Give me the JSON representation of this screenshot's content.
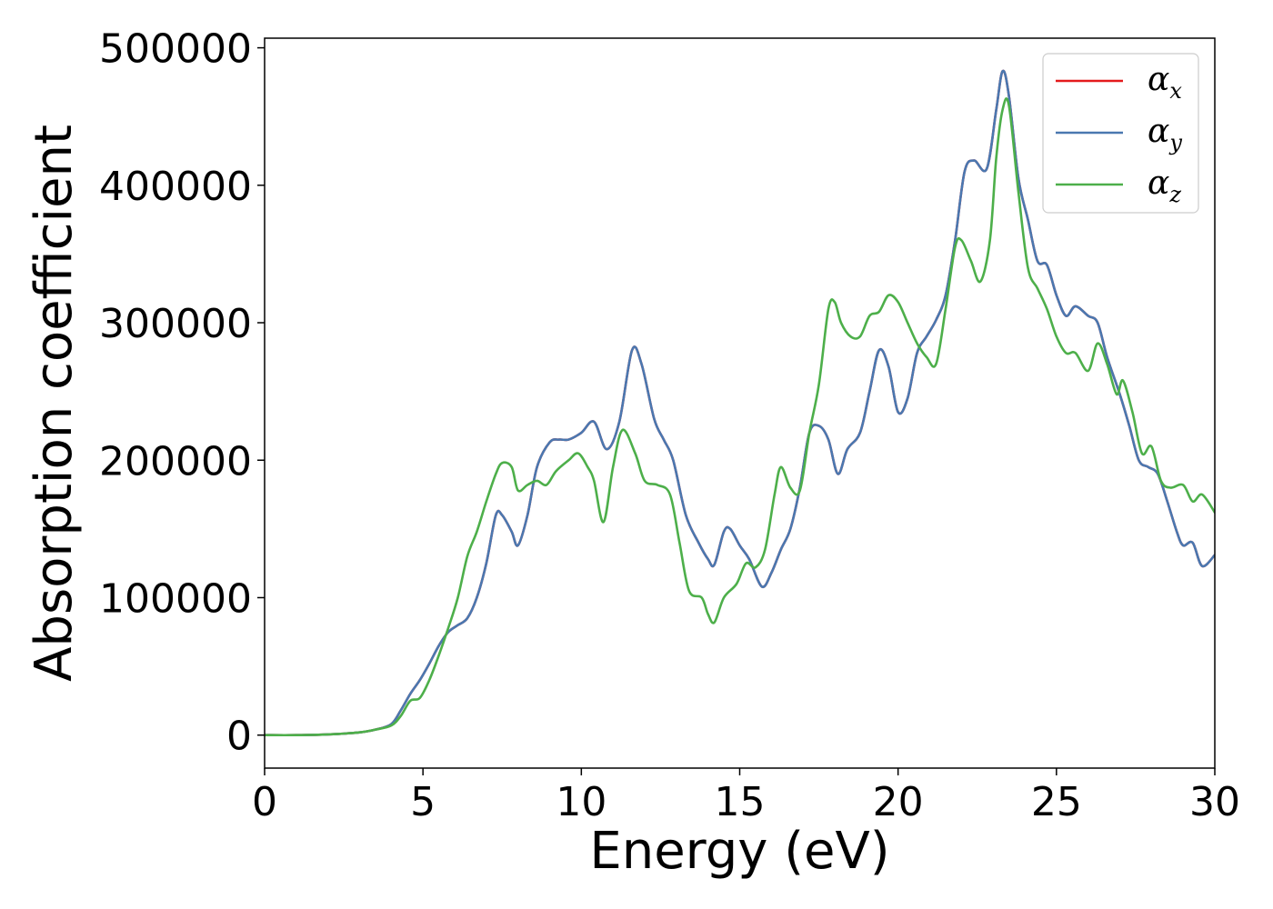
{
  "chart_data": {
    "type": "line",
    "title": "",
    "xlabel": "Energy (eV)",
    "ylabel": "Absorption coefficient",
    "xlim": [
      0,
      30
    ],
    "ylim": [
      -24000,
      507000
    ],
    "x_ticks": [
      0,
      5,
      10,
      15,
      20,
      25,
      30
    ],
    "x_tick_labels": [
      "0",
      "5",
      "10",
      "15",
      "20",
      "25",
      "30"
    ],
    "y_ticks": [
      0,
      100000,
      200000,
      300000,
      400000,
      500000
    ],
    "y_tick_labels": [
      "0",
      "100000",
      "200000",
      "300000",
      "400000",
      "500000"
    ],
    "grid": false,
    "legend": {
      "placement": "top-right",
      "entries": [
        {
          "symbol": "α",
          "sub": "x",
          "color": "#e41a1c"
        },
        {
          "symbol": "α",
          "sub": "y",
          "color": "#4a78b0"
        },
        {
          "symbol": "α",
          "sub": "z",
          "color": "#4daf4a"
        }
      ]
    },
    "series": [
      {
        "name": "αx",
        "color": "#e41a1c",
        "x": [
          0,
          1,
          2,
          3,
          3.5,
          4,
          4.3,
          4.6,
          4.9,
          5.2,
          5.5,
          5.8,
          6.1,
          6.4,
          6.7,
          7.0,
          7.3,
          7.5,
          7.8,
          8.0,
          8.3,
          8.6,
          9.0,
          9.3,
          9.6,
          10.0,
          10.4,
          10.8,
          11.2,
          11.6,
          11.9,
          12.3,
          12.6,
          12.9,
          13.3,
          13.7,
          14.0,
          14.2,
          14.5,
          14.7,
          15.0,
          15.3,
          15.7,
          16.0,
          16.3,
          16.6,
          16.9,
          17.2,
          17.5,
          17.8,
          18.1,
          18.4,
          18.8,
          19.1,
          19.4,
          19.7,
          20.0,
          20.3,
          20.6,
          20.9,
          21.2,
          21.5,
          21.8,
          22.1,
          22.4,
          22.8,
          23.1,
          23.3,
          23.5,
          23.8,
          24.1,
          24.4,
          24.7,
          25.0,
          25.3,
          25.6,
          26.0,
          26.3,
          26.6,
          27.0,
          27.3,
          27.6,
          27.9,
          28.2,
          28.5,
          28.8,
          29.0,
          29.3,
          29.6,
          30.0
        ],
        "y": [
          0,
          0,
          500,
          2000,
          4000,
          8000,
          18000,
          30000,
          40000,
          52000,
          65000,
          75000,
          80000,
          85000,
          100000,
          125000,
          160000,
          160000,
          148000,
          138000,
          160000,
          195000,
          213000,
          215000,
          215000,
          220000,
          228000,
          208000,
          228000,
          280000,
          270000,
          230000,
          215000,
          200000,
          160000,
          140000,
          128000,
          124000,
          148000,
          150000,
          138000,
          128000,
          108000,
          118000,
          135000,
          150000,
          180000,
          220000,
          225000,
          215000,
          190000,
          208000,
          220000,
          250000,
          280000,
          268000,
          235000,
          245000,
          278000,
          290000,
          302000,
          320000,
          360000,
          410000,
          418000,
          412000,
          455000,
          483000,
          465000,
          405000,
          375000,
          345000,
          342000,
          320000,
          305000,
          312000,
          305000,
          300000,
          275000,
          248000,
          225000,
          200000,
          195000,
          190000,
          170000,
          148000,
          138000,
          140000,
          123000,
          131000
        ]
      },
      {
        "name": "αy",
        "color": "#4a78b0",
        "x": [
          0,
          1,
          2,
          3,
          3.5,
          4,
          4.3,
          4.6,
          4.9,
          5.2,
          5.5,
          5.8,
          6.1,
          6.4,
          6.7,
          7.0,
          7.3,
          7.5,
          7.8,
          8.0,
          8.3,
          8.6,
          9.0,
          9.3,
          9.6,
          10.0,
          10.4,
          10.8,
          11.2,
          11.6,
          11.9,
          12.3,
          12.6,
          12.9,
          13.3,
          13.7,
          14.0,
          14.2,
          14.5,
          14.7,
          15.0,
          15.3,
          15.7,
          16.0,
          16.3,
          16.6,
          16.9,
          17.2,
          17.5,
          17.8,
          18.1,
          18.4,
          18.8,
          19.1,
          19.4,
          19.7,
          20.0,
          20.3,
          20.6,
          20.9,
          21.2,
          21.5,
          21.8,
          22.1,
          22.4,
          22.8,
          23.1,
          23.3,
          23.5,
          23.8,
          24.1,
          24.4,
          24.7,
          25.0,
          25.3,
          25.6,
          26.0,
          26.3,
          26.6,
          27.0,
          27.3,
          27.6,
          27.9,
          28.2,
          28.5,
          28.8,
          29.0,
          29.3,
          29.6,
          30.0
        ],
        "y": [
          0,
          0,
          500,
          2000,
          4000,
          8000,
          18000,
          30000,
          40000,
          52000,
          65000,
          75000,
          80000,
          85000,
          100000,
          125000,
          160000,
          160000,
          148000,
          138000,
          160000,
          195000,
          213000,
          215000,
          215000,
          220000,
          228000,
          208000,
          228000,
          280000,
          270000,
          230000,
          215000,
          200000,
          160000,
          140000,
          128000,
          124000,
          148000,
          150000,
          138000,
          128000,
          108000,
          118000,
          135000,
          150000,
          180000,
          220000,
          225000,
          215000,
          190000,
          208000,
          220000,
          250000,
          280000,
          268000,
          235000,
          245000,
          278000,
          290000,
          302000,
          320000,
          360000,
          410000,
          418000,
          412000,
          455000,
          483000,
          465000,
          405000,
          375000,
          345000,
          342000,
          320000,
          305000,
          312000,
          305000,
          300000,
          275000,
          248000,
          225000,
          200000,
          195000,
          190000,
          170000,
          148000,
          138000,
          140000,
          123000,
          131000
        ]
      },
      {
        "name": "αz",
        "color": "#4daf4a",
        "x": [
          0,
          1,
          2,
          3,
          3.5,
          4,
          4.3,
          4.6,
          4.9,
          5.2,
          5.5,
          5.8,
          6.1,
          6.4,
          6.7,
          7.0,
          7.3,
          7.5,
          7.8,
          8.0,
          8.3,
          8.6,
          8.9,
          9.2,
          9.6,
          9.9,
          10.2,
          10.4,
          10.7,
          11.0,
          11.3,
          11.7,
          12.0,
          12.4,
          12.8,
          13.1,
          13.4,
          13.8,
          14.0,
          14.2,
          14.5,
          14.9,
          15.2,
          15.5,
          15.8,
          16.1,
          16.3,
          16.6,
          16.9,
          17.2,
          17.5,
          17.8,
          18.0,
          18.2,
          18.5,
          18.8,
          19.1,
          19.4,
          19.7,
          20.0,
          20.3,
          20.6,
          20.9,
          21.2,
          21.5,
          21.8,
          22.0,
          22.3,
          22.6,
          22.9,
          23.1,
          23.3,
          23.5,
          23.8,
          24.1,
          24.4,
          24.7,
          25.0,
          25.3,
          25.6,
          26.0,
          26.3,
          26.6,
          26.9,
          27.1,
          27.4,
          27.7,
          28.0,
          28.3,
          28.6,
          29.0,
          29.3,
          29.6,
          30.0
        ],
        "y": [
          0,
          0,
          500,
          2000,
          4000,
          7000,
          14000,
          25000,
          27000,
          40000,
          58000,
          78000,
          100000,
          130000,
          148000,
          170000,
          190000,
          198000,
          195000,
          178000,
          182000,
          185000,
          182000,
          192000,
          200000,
          205000,
          195000,
          185000,
          155000,
          195000,
          222000,
          205000,
          185000,
          182000,
          175000,
          140000,
          105000,
          100000,
          88000,
          82000,
          100000,
          110000,
          125000,
          122000,
          135000,
          175000,
          195000,
          180000,
          178000,
          220000,
          255000,
          310000,
          315000,
          300000,
          290000,
          290000,
          305000,
          308000,
          320000,
          315000,
          300000,
          285000,
          275000,
          270000,
          310000,
          355000,
          360000,
          345000,
          330000,
          360000,
          420000,
          455000,
          458000,
          395000,
          340000,
          325000,
          310000,
          290000,
          278000,
          278000,
          265000,
          285000,
          270000,
          248000,
          258000,
          235000,
          205000,
          210000,
          185000,
          180000,
          182000,
          170000,
          175000,
          162000
        ]
      }
    ]
  }
}
